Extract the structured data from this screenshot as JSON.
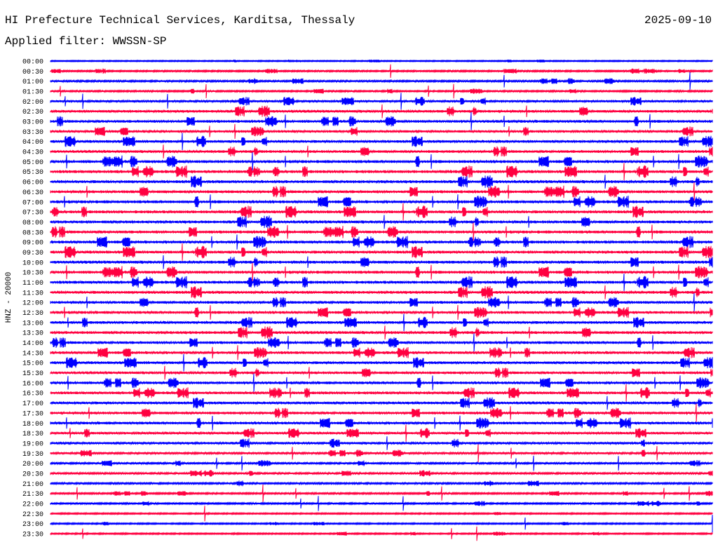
{
  "header": {
    "title": "HI Prefecture Technical Services, Karditsa, Thessaly",
    "date": "2025-09-10",
    "filter": "Applied filter: WWSSN-SP"
  },
  "chart_data": {
    "type": "line",
    "subtype": "helicorder",
    "title": "HI Prefecture Technical Services, Karditsa, Thessaly",
    "ylabel": "HNZ - 20000",
    "xlabel": "",
    "colors": [
      "#0000ff",
      "#ff0040"
    ],
    "row_labels": [
      "00:00",
      "00:30",
      "01:00",
      "01:30",
      "02:00",
      "02:30",
      "03:00",
      "03:30",
      "04:00",
      "04:30",
      "05:00",
      "05:30",
      "06:00",
      "06:30",
      "07:00",
      "07:30",
      "08:00",
      "08:30",
      "09:00",
      "09:30",
      "10:00",
      "10:30",
      "11:00",
      "11:30",
      "12:00",
      "12:30",
      "13:00",
      "13:30",
      "14:00",
      "14:30",
      "15:00",
      "15:30",
      "16:00",
      "16:30",
      "17:00",
      "17:30",
      "18:00",
      "18:30",
      "19:00",
      "19:30",
      "20:00",
      "20:30",
      "21:00",
      "21:30",
      "22:00",
      "22:30",
      "23:00",
      "23:30"
    ],
    "activity": [
      0.2,
      0.4,
      0.5,
      0.4,
      0.7,
      0.9,
      0.9,
      0.8,
      0.9,
      0.9,
      1,
      1,
      1,
      1,
      1,
      1,
      1,
      1,
      1,
      1,
      1,
      1,
      1,
      1,
      0.9,
      0.9,
      0.9,
      1,
      0.9,
      0.9,
      0.9,
      0.9,
      0.9,
      0.9,
      0.9,
      0.9,
      0.9,
      0.8,
      0.8,
      0.6,
      0.5,
      0.5,
      0.5,
      0.4,
      0.4,
      0.3,
      0.3,
      0.3
    ]
  }
}
